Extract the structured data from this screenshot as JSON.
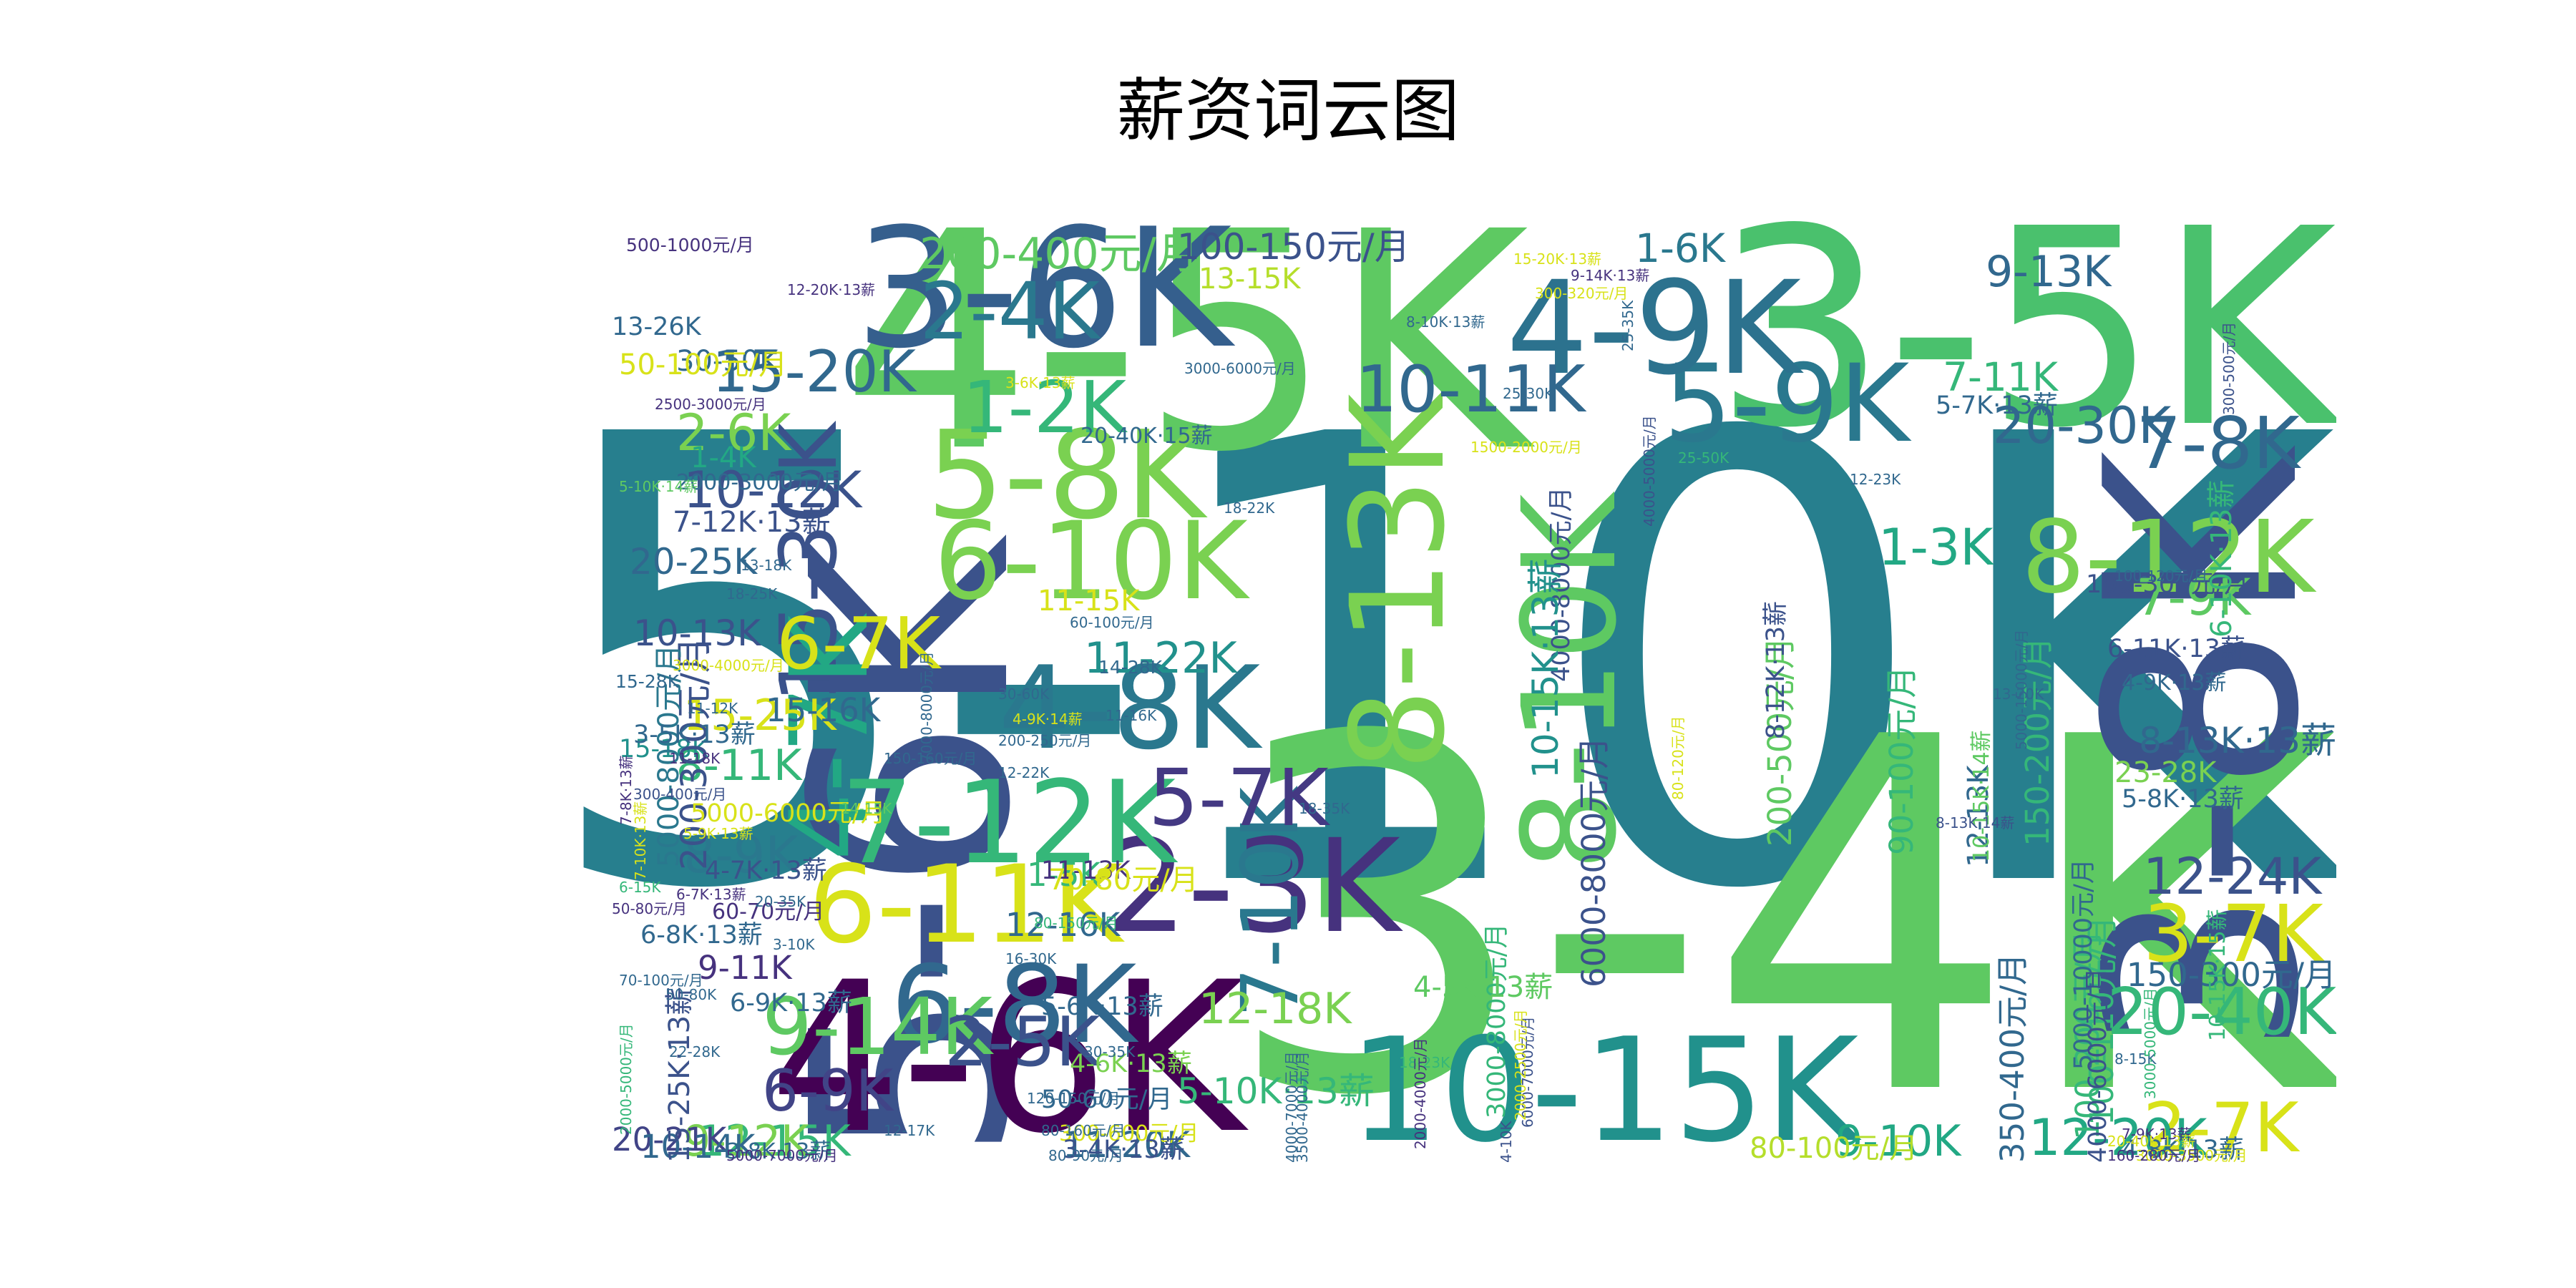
{
  "title": "薪资词云图",
  "palette": [
    "#440154",
    "#46327e",
    "#365c8d",
    "#277f8e",
    "#1fa187",
    "#4ac16d",
    "#a0da39",
    "#fde725"
  ],
  "words": [
    {
      "text": "5-10K",
      "color": "#277f8e"
    },
    {
      "text": "3-4K",
      "color": "#5ec962"
    },
    {
      "text": "4-5K",
      "color": "#5ec962"
    },
    {
      "text": "3-5K",
      "color": "#4ac16d"
    },
    {
      "text": "5-6K",
      "color": "#3b528b"
    },
    {
      "text": "3-8K",
      "color": "#3b528b"
    },
    {
      "text": "3-6K",
      "color": "#355f8d"
    },
    {
      "text": "4-6K",
      "color": "#440154"
    },
    {
      "text": "5-9K",
      "color": "#2a788e"
    },
    {
      "text": "10-15K",
      "color": "#21918c"
    },
    {
      "text": "4-9K",
      "color": "#2c728e"
    },
    {
      "text": "8-13K",
      "color": "#7ad151"
    },
    {
      "text": "8-10K",
      "color": "#5ec962"
    },
    {
      "text": "5-8K",
      "color": "#7ad151"
    },
    {
      "text": "6-10K",
      "color": "#7ad151"
    },
    {
      "text": "4-8K",
      "color": "#2a788e"
    },
    {
      "text": "2-3K",
      "color": "#46327e"
    },
    {
      "text": "6-8K",
      "color": "#31688e"
    },
    {
      "text": "6-11K",
      "color": "#d8e219"
    },
    {
      "text": "7-12K",
      "color": "#35b779"
    },
    {
      "text": "8-12K",
      "color": "#7ad151"
    },
    {
      "text": "15-30K",
      "color": "#3b528b"
    },
    {
      "text": "4-7K",
      "color": "#22a884"
    },
    {
      "text": "2-4K",
      "color": "#2a788e"
    },
    {
      "text": "9-14K",
      "color": "#5ec962"
    },
    {
      "text": "7-10K",
      "color": "#2a788e"
    },
    {
      "text": "3-7K",
      "color": "#d8e219"
    },
    {
      "text": "7-8K",
      "color": "#31688e"
    },
    {
      "text": "6-7K",
      "color": "#d8e219"
    },
    {
      "text": "10-11K",
      "color": "#31688e"
    },
    {
      "text": "1-2K",
      "color": "#35b779"
    },
    {
      "text": "15-20K",
      "color": "#31688e"
    },
    {
      "text": "5-7K",
      "color": "#443983"
    },
    {
      "text": "2-5K",
      "color": "#3b528b"
    },
    {
      "text": "6-9K",
      "color": "#414487"
    },
    {
      "text": "20-40K",
      "color": "#35b779"
    },
    {
      "text": "2-7K",
      "color": "#d8e219"
    },
    {
      "text": "1-3K",
      "color": "#22a884"
    },
    {
      "text": "9-13K",
      "color": "#31688e"
    },
    {
      "text": "10-12K",
      "color": "#3b528b"
    },
    {
      "text": "12-24K",
      "color": "#3b528b"
    },
    {
      "text": "20-30K",
      "color": "#31688e"
    },
    {
      "text": "12-20K",
      "color": "#22a884"
    },
    {
      "text": "9-10K",
      "color": "#22a884"
    },
    {
      "text": "11-22K",
      "color": "#21918c"
    },
    {
      "text": "12-18K",
      "color": "#7ad151"
    },
    {
      "text": "15-25K",
      "color": "#d8e219"
    },
    {
      "text": "8-11K",
      "color": "#35b779"
    },
    {
      "text": "8-9K",
      "color": "#2a788e"
    },
    {
      "text": "7-9K",
      "color": "#5ec962"
    },
    {
      "text": "7-11K",
      "color": "#35b779"
    },
    {
      "text": "1-6K",
      "color": "#2a788e"
    },
    {
      "text": "2-6K",
      "color": "#7ad151"
    },
    {
      "text": "12-15K",
      "color": "#35b779"
    },
    {
      "text": "9-12K",
      "color": "#7ad151"
    },
    {
      "text": "11-20K",
      "color": "#31688e"
    },
    {
      "text": "10-13K",
      "color": "#3b528b"
    },
    {
      "text": "20-25K",
      "color": "#31688e"
    },
    {
      "text": "20-21K",
      "color": "#414487"
    },
    {
      "text": "10-14K",
      "color": "#31688e"
    },
    {
      "text": "9-11K",
      "color": "#46327e"
    },
    {
      "text": "12-16K",
      "color": "#31688e"
    },
    {
      "text": "15-16K",
      "color": "#31688e"
    },
    {
      "text": "1-4K",
      "color": "#22a884"
    },
    {
      "text": "1-5K",
      "color": "#35b779"
    },
    {
      "text": "30-50K",
      "color": "#31688e"
    },
    {
      "text": "13-26K",
      "color": "#31688e"
    },
    {
      "text": "15-18K",
      "color": "#21918c"
    },
    {
      "text": "13-15K",
      "color": "#b5de2b"
    },
    {
      "text": "23-28K",
      "color": "#7ad151"
    },
    {
      "text": "12-13K",
      "color": "#31688e"
    },
    {
      "text": "11-13K",
      "color": "#46327e"
    },
    {
      "text": "11-15K",
      "color": "#d8e219"
    },
    {
      "text": "200-400元/月",
      "color": "#5ec962"
    },
    {
      "text": "100-150元/月",
      "color": "#3b528b"
    },
    {
      "text": "50-100元/月",
      "color": "#d8e219"
    },
    {
      "text": "500-1000元/月",
      "color": "#46327e"
    },
    {
      "text": "200-300元/月",
      "color": "#3b528b"
    },
    {
      "text": "5000-8000元/月",
      "color": "#2a788e"
    },
    {
      "text": "6000-8000元/月",
      "color": "#3b528b"
    },
    {
      "text": "200-500元/月",
      "color": "#5ec962"
    },
    {
      "text": "150-200元/月",
      "color": "#35b779"
    },
    {
      "text": "90-100元/月",
      "color": "#35b779"
    },
    {
      "text": "100-110元/月",
      "color": "#35b779"
    },
    {
      "text": "100-200元/月",
      "color": "#35b779"
    },
    {
      "text": "5000-10000元/月",
      "color": "#31688e"
    },
    {
      "text": "4000-6000元/月",
      "color": "#3b528b"
    },
    {
      "text": "350-400元/月",
      "color": "#31688e"
    },
    {
      "text": "3000-8000元/月",
      "color": "#35b779"
    },
    {
      "text": "150-300元/月",
      "color": "#31688e"
    },
    {
      "text": "100-300元/月",
      "color": "#3b528b"
    },
    {
      "text": "4000-8000元/月",
      "color": "#3b528b"
    },
    {
      "text": "5000-6000元/月",
      "color": "#d8e219"
    },
    {
      "text": "2000-3000元/月",
      "color": "#31688e"
    },
    {
      "text": "70-80元/月",
      "color": "#d8e219"
    },
    {
      "text": "80-100元/月",
      "color": "#b5de2b"
    },
    {
      "text": "50-60元/月",
      "color": "#31688e"
    },
    {
      "text": "300-600元/月",
      "color": "#d8e219"
    },
    {
      "text": "60-70元/月",
      "color": "#46327e"
    },
    {
      "text": "10-15K·13薪",
      "color": "#21918c"
    },
    {
      "text": "8-12K·13薪",
      "color": "#3b528b"
    },
    {
      "text": "7-12K·13薪",
      "color": "#3b528b"
    },
    {
      "text": "5-10K·13薪",
      "color": "#35b779"
    },
    {
      "text": "5-8K·13薪",
      "color": "#31688e"
    },
    {
      "text": "5-7K·13薪",
      "color": "#31688e"
    },
    {
      "text": "6-11K·13薪",
      "color": "#3b528b"
    },
    {
      "text": "4-9K·13薪",
      "color": "#31688e"
    },
    {
      "text": "8-13K·13薪",
      "color": "#31688e"
    },
    {
      "text": "6-10K·13薪",
      "color": "#35b779"
    },
    {
      "text": "4-5K·13薪",
      "color": "#5ec962"
    },
    {
      "text": "5-6K·13薪",
      "color": "#31688e"
    },
    {
      "text": "4-6K·13薪",
      "color": "#7ad151"
    },
    {
      "text": "3-4K·13薪",
      "color": "#3b528b"
    },
    {
      "text": "6-9K·13薪",
      "color": "#31688e"
    },
    {
      "text": "6-8K·13薪",
      "color": "#31688e"
    },
    {
      "text": "4-7K·13薪",
      "color": "#3b528b"
    },
    {
      "text": "3-5K·13薪",
      "color": "#31688e"
    },
    {
      "text": "3-8K·13薪",
      "color": "#31688e"
    },
    {
      "text": "4-8K·13薪",
      "color": "#31688e"
    },
    {
      "text": "15-25K·13薪",
      "color": "#3b528b"
    },
    {
      "text": "10-15K·14薪",
      "color": "#5ec962"
    },
    {
      "text": "10-15K·15薪",
      "color": "#35b779"
    },
    {
      "text": "5-10K·14薪",
      "color": "#5ec962"
    },
    {
      "text": "20-40K·15薪",
      "color": "#31688e"
    },
    {
      "text": "12-20K·13薪",
      "color": "#46327e"
    },
    {
      "text": "15-20K·13薪",
      "color": "#d8e219"
    },
    {
      "text": "15-28K",
      "color": "#31688e"
    },
    {
      "text": "11-12K",
      "color": "#31688e"
    },
    {
      "text": "11-16K",
      "color": "#31688e"
    },
    {
      "text": "14-28K",
      "color": "#31688e"
    },
    {
      "text": "30-60K",
      "color": "#31688e"
    },
    {
      "text": "12-22K",
      "color": "#31688e"
    },
    {
      "text": "14-15K",
      "color": "#5ec962"
    },
    {
      "text": "18-35K",
      "color": "#31688e"
    },
    {
      "text": "13-18K",
      "color": "#31688e"
    },
    {
      "text": "18-25K",
      "color": "#31688e"
    },
    {
      "text": "18-22K",
      "color": "#31688e"
    },
    {
      "text": "25-30K",
      "color": "#31688e"
    },
    {
      "text": "25-35K",
      "color": "#31688e"
    },
    {
      "text": "25-50K",
      "color": "#35b779"
    },
    {
      "text": "12-23K",
      "color": "#31688e"
    },
    {
      "text": "13-20K",
      "color": "#31688e"
    },
    {
      "text": "16-30K",
      "color": "#31688e"
    },
    {
      "text": "12-17K",
      "color": "#31688e"
    },
    {
      "text": "20-35K",
      "color": "#31688e"
    },
    {
      "text": "50-80K",
      "color": "#31688e"
    },
    {
      "text": "3-10K",
      "color": "#31688e"
    },
    {
      "text": "6-15K",
      "color": "#35b779"
    },
    {
      "text": "22-28K",
      "color": "#31688e"
    },
    {
      "text": "30-35K",
      "color": "#31688e"
    },
    {
      "text": "8-15K",
      "color": "#31688e"
    },
    {
      "text": "18-23K",
      "color": "#35b779"
    },
    {
      "text": "11-18K",
      "color": "#46327e"
    },
    {
      "text": "4-10K",
      "color": "#3b528b"
    },
    {
      "text": "3000-4000元/月",
      "color": "#d8e219"
    },
    {
      "text": "2500-3000元/月",
      "color": "#46327e"
    },
    {
      "text": "3000-6000元/月",
      "color": "#31688e"
    },
    {
      "text": "1500-2000元/月",
      "color": "#d8e219"
    },
    {
      "text": "300-320元/月",
      "color": "#d8e219"
    },
    {
      "text": "300-500元/月",
      "color": "#3b528b"
    },
    {
      "text": "100-120元/月",
      "color": "#31688e"
    },
    {
      "text": "5000-15000元/月",
      "color": "#31688e"
    },
    {
      "text": "4000-5000元/月",
      "color": "#3b528b"
    },
    {
      "text": "7000-8000元/月",
      "color": "#31688e"
    },
    {
      "text": "6000-7000元/月",
      "color": "#3b528b"
    },
    {
      "text": "4000-7000元/月",
      "color": "#31688e"
    },
    {
      "text": "3500-4000元/月",
      "color": "#31688e"
    },
    {
      "text": "2000-4000元/月",
      "color": "#46327e"
    },
    {
      "text": "2000-2500元/月",
      "color": "#d8e219"
    },
    {
      "text": "3000-5000元/月",
      "color": "#35b779"
    },
    {
      "text": "2000-5000元/月",
      "color": "#35b779"
    },
    {
      "text": "3000-3500元/月",
      "color": "#d8e219"
    },
    {
      "text": "5000-7000元/月",
      "color": "#46327e"
    },
    {
      "text": "200-250元/月",
      "color": "#31688e"
    },
    {
      "text": "150-160元/月",
      "color": "#31688e"
    },
    {
      "text": "120-150元/月",
      "color": "#31688e"
    },
    {
      "text": "80-160元/月",
      "color": "#31688e"
    },
    {
      "text": "80-90元/月",
      "color": "#31688e"
    },
    {
      "text": "80-150元/月",
      "color": "#35b779"
    },
    {
      "text": "160-280元/月",
      "color": "#46327e"
    },
    {
      "text": "60-100元/月",
      "color": "#31688e"
    },
    {
      "text": "50-80元/月",
      "color": "#46327e"
    },
    {
      "text": "70-100元/月",
      "color": "#31688e"
    },
    {
      "text": "80-120元/月",
      "color": "#d8e219"
    },
    {
      "text": "300-400元/月",
      "color": "#3b528b"
    },
    {
      "text": "8-10K·13薪",
      "color": "#31688e"
    },
    {
      "text": "3-6K·13薪",
      "color": "#d8e219"
    },
    {
      "text": "4-9K·14薪",
      "color": "#d8e219"
    },
    {
      "text": "5-9K·13薪",
      "color": "#d8e219"
    },
    {
      "text": "7-8K·13薪",
      "color": "#46327e"
    },
    {
      "text": "6-7K·13薪",
      "color": "#46327e"
    },
    {
      "text": "7-10K·13薪",
      "color": "#d8e219"
    },
    {
      "text": "9-14K·13薪",
      "color": "#46327e"
    },
    {
      "text": "8-13K·14薪",
      "color": "#3b528b"
    },
    {
      "text": "7-9K·13薪",
      "color": "#46327e"
    },
    {
      "text": "20-40K·13薪",
      "color": "#d8e219"
    }
  ]
}
